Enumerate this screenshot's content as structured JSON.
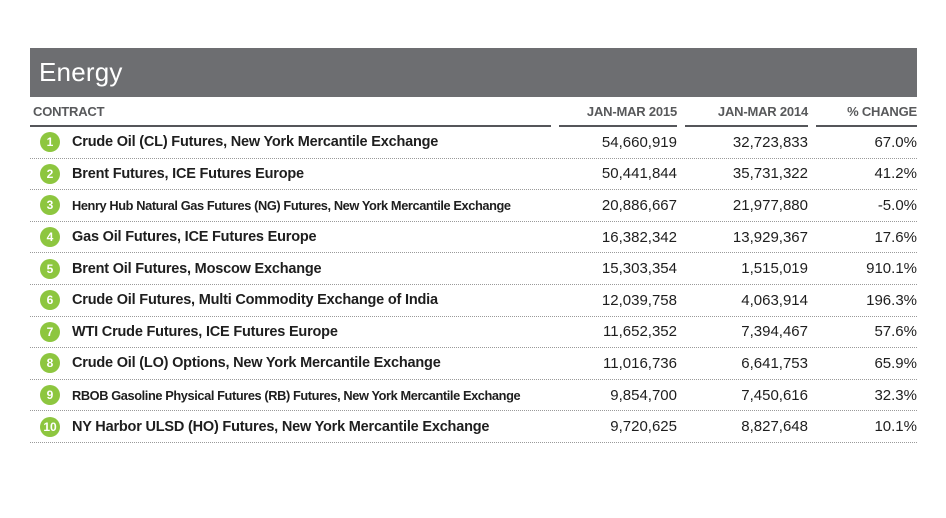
{
  "title": "Energy",
  "colors": {
    "title_bar_bg": "#6d6e71",
    "title_text": "#ffffff",
    "column_header_text": "#58595b",
    "rank_badge_green": "#8dc63f",
    "body_text": "#1e1e1e"
  },
  "table": {
    "columns": [
      "CONTRACT",
      "JAN-MAR 2015",
      "JAN-MAR 2014",
      "% CHANGE"
    ],
    "rows": [
      {
        "rank": "1",
        "contract": "Crude Oil (CL) Futures, New York Mercantile Exchange",
        "jan_mar_2015": "54,660,919",
        "jan_mar_2014": "32,723,833",
        "pct_change": "67.0%"
      },
      {
        "rank": "2",
        "contract": "Brent Futures, ICE Futures Europe",
        "jan_mar_2015": "50,441,844",
        "jan_mar_2014": "35,731,322",
        "pct_change": "41.2%"
      },
      {
        "rank": "3",
        "contract": "Henry Hub Natural Gas Futures (NG) Futures, New York Mercantile Exchange",
        "jan_mar_2015": "20,886,667",
        "jan_mar_2014": "21,977,880",
        "pct_change": "-5.0%"
      },
      {
        "rank": "4",
        "contract": "Gas Oil Futures, ICE Futures Europe",
        "jan_mar_2015": "16,382,342",
        "jan_mar_2014": "13,929,367",
        "pct_change": "17.6%"
      },
      {
        "rank": "5",
        "contract": "Brent Oil Futures, Moscow Exchange",
        "jan_mar_2015": "15,303,354",
        "jan_mar_2014": "1,515,019",
        "pct_change": "910.1%"
      },
      {
        "rank": "6",
        "contract": "Crude Oil Futures, Multi Commodity Exchange of India",
        "jan_mar_2015": "12,039,758",
        "jan_mar_2014": "4,063,914",
        "pct_change": "196.3%"
      },
      {
        "rank": "7",
        "contract": "WTI Crude Futures, ICE Futures Europe",
        "jan_mar_2015": "11,652,352",
        "jan_mar_2014": "7,394,467",
        "pct_change": "57.6%"
      },
      {
        "rank": "8",
        "contract": "Crude Oil (LO) Options, New York Mercantile Exchange",
        "jan_mar_2015": "11,016,736",
        "jan_mar_2014": "6,641,753",
        "pct_change": "65.9%"
      },
      {
        "rank": "9",
        "contract": "RBOB Gasoline Physical Futures (RB) Futures, New York Mercantile Exchange",
        "jan_mar_2015": "9,854,700",
        "jan_mar_2014": "7,450,616",
        "pct_change": "32.3%"
      },
      {
        "rank": "10",
        "contract": "NY Harbor ULSD (HO) Futures, New York Mercantile Exchange",
        "jan_mar_2015": "9,720,625",
        "jan_mar_2014": "8,827,648",
        "pct_change": "10.1%"
      }
    ]
  }
}
